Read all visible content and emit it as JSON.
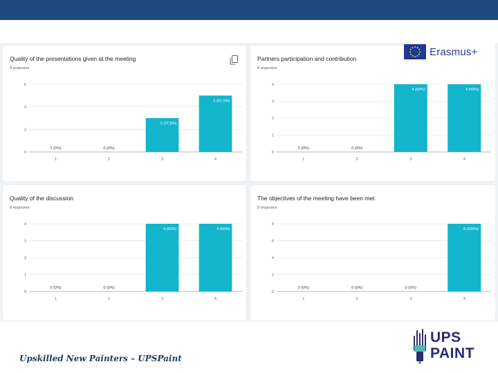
{
  "branding": {
    "program": "Erasmus+",
    "footer": "Upskilled New Painters – UPSPaint",
    "logo_line1": "UPS",
    "logo_line2": "PAINT"
  },
  "colors": {
    "bar": "#12b5cb",
    "grid": "#e6e6e6",
    "axis": "#9aa0a6",
    "band": "#1f4a7c",
    "brand": "#1f3a93"
  },
  "icons": {
    "copy": "copy-icon",
    "flag": "eu-flag-icon",
    "logo": "ups-paint-logo-icon"
  },
  "chart_data": [
    {
      "type": "bar",
      "title": "Quality of the presentations given at the meeting",
      "subtitle": "8 respostes",
      "categories": [
        "1",
        "2",
        "3",
        "4"
      ],
      "values": [
        0,
        0,
        3,
        5
      ],
      "data_labels": [
        "0 (0%)",
        "0 (0%)",
        "3 (37,5%)",
        "5 (62,5%)"
      ],
      "ylim": [
        0,
        6
      ],
      "yticks": [
        "0",
        "2",
        "4",
        "6"
      ],
      "grid": true
    },
    {
      "type": "bar",
      "title": "Partners participation and contribution",
      "subtitle": "8 respostes",
      "categories": [
        "1",
        "2",
        "3",
        "4"
      ],
      "values": [
        0,
        0,
        4,
        4
      ],
      "data_labels": [
        "0 (0%)",
        "0 (0%)",
        "4 (50%)",
        "4 (50%)"
      ],
      "ylim": [
        0,
        4
      ],
      "yticks": [
        "0",
        "1",
        "2",
        "3",
        "4"
      ],
      "grid": true
    },
    {
      "type": "bar",
      "title": "Quality of the discussion",
      "subtitle": "8 respostes",
      "categories": [
        "1",
        "2",
        "3",
        "4"
      ],
      "values": [
        0,
        0,
        4,
        4
      ],
      "data_labels": [
        "0 (0%)",
        "0 (0%)",
        "4 (50%)",
        "4 (50%)"
      ],
      "ylim": [
        0,
        4
      ],
      "yticks": [
        "0",
        "1",
        "2",
        "3",
        "4"
      ],
      "grid": true
    },
    {
      "type": "bar",
      "title": "The objectives of the meeting have been met",
      "subtitle": "8 respostes",
      "categories": [
        "1",
        "2",
        "3",
        "4"
      ],
      "values": [
        0,
        0,
        0,
        8
      ],
      "data_labels": [
        "0 (0%)",
        "0 (0%)",
        "0 (0%)",
        "8 (100%)"
      ],
      "ylim": [
        0,
        8
      ],
      "yticks": [
        "0",
        "2",
        "4",
        "6",
        "8"
      ],
      "grid": true
    }
  ]
}
